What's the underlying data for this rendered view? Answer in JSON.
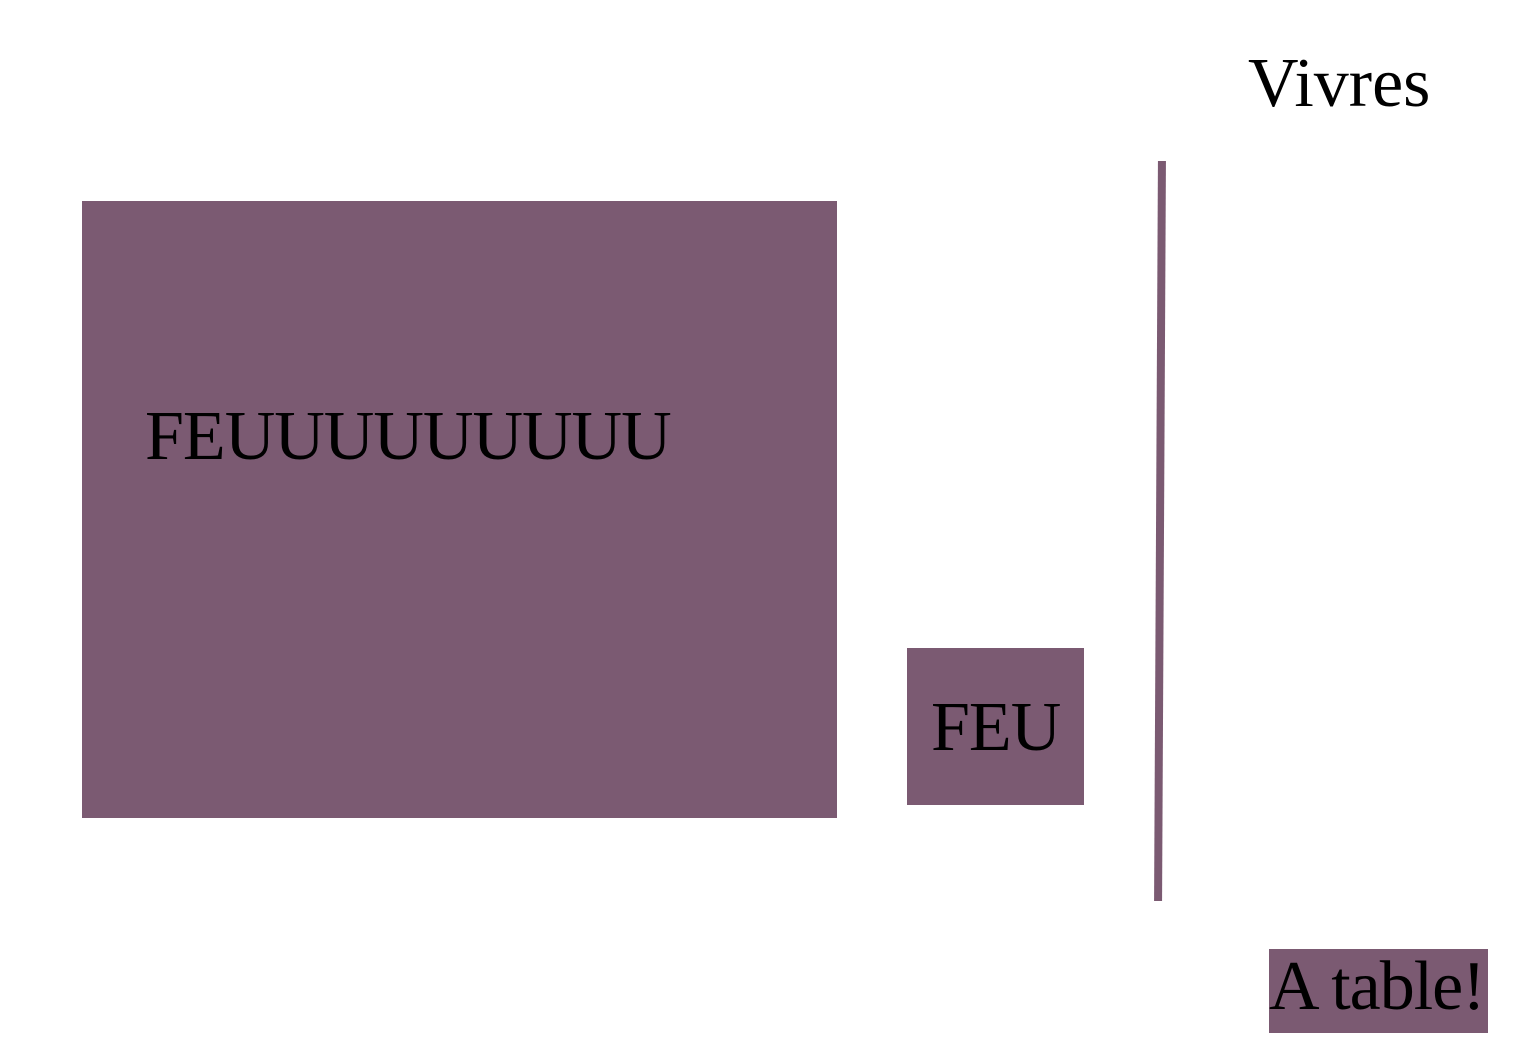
{
  "header": {
    "title": "Vivres"
  },
  "panels": {
    "large_label": "FEUUUUUUUUU",
    "small_label": "FEU"
  },
  "actions": {
    "cta_label": "A table!"
  },
  "colors": {
    "accent": "#7b5a72",
    "background": "#ffffff",
    "text": "#000000"
  }
}
